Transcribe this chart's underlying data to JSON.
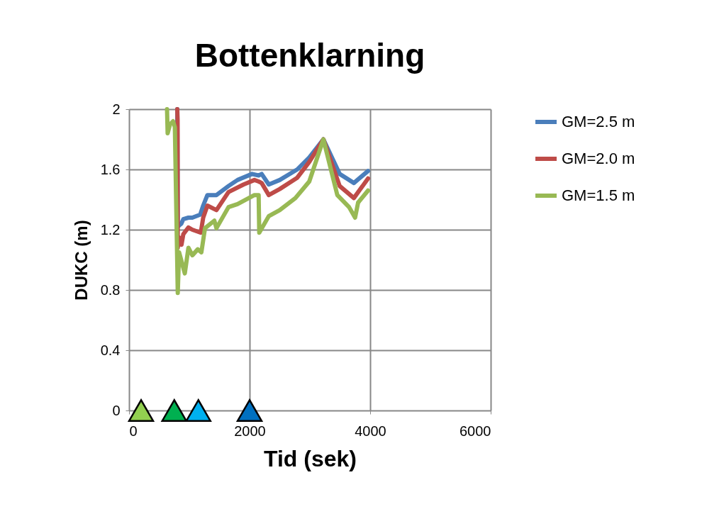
{
  "chart_data": {
    "type": "line",
    "title": "Bottenklarning",
    "xlabel": "Tid (sek)",
    "ylabel": "DUKC (m)",
    "xlim": [
      0,
      6000
    ],
    "xticks": [
      0,
      2000,
      4000,
      6000
    ],
    "ylim": [
      0,
      2
    ],
    "yticks": [
      0,
      0.4,
      0.8,
      1.2,
      1.6,
      2
    ],
    "grid": true,
    "legend": "right",
    "line_style": "solid",
    "series": [
      {
        "name": "GM=2.5 m",
        "color": "#4a7ebb",
        "x": [
          800,
          808,
          867,
          900,
          985,
          1050,
          1180,
          1230,
          1300,
          1450,
          1650,
          1800,
          2040,
          2150,
          2200,
          2318,
          2500,
          2790,
          2990,
          3224,
          3494,
          3730,
          3965
        ],
        "values": [
          2.0,
          1.22,
          1.24,
          1.27,
          1.28,
          1.28,
          1.3,
          1.36,
          1.43,
          1.43,
          1.49,
          1.53,
          1.57,
          1.56,
          1.57,
          1.5,
          1.53,
          1.6,
          1.68,
          1.8,
          1.57,
          1.51,
          1.59
        ]
      },
      {
        "name": "GM=2.0 m",
        "color": "#be4b48",
        "x": [
          800,
          805,
          808,
          830,
          870,
          900,
          985,
          1050,
          1190,
          1230,
          1300,
          1450,
          1650,
          1900,
          2080,
          2150,
          2200,
          2318,
          2500,
          2790,
          2990,
          3224,
          3494,
          3730,
          3965
        ],
        "values": [
          2.0,
          1.93,
          1.08,
          1.15,
          1.1,
          1.17,
          1.215,
          1.2,
          1.18,
          1.28,
          1.36,
          1.33,
          1.45,
          1.5,
          1.53,
          1.52,
          1.51,
          1.43,
          1.47,
          1.545,
          1.65,
          1.8,
          1.49,
          1.41,
          1.54
        ]
      },
      {
        "name": "GM=1.5 m",
        "color": "#98b954",
        "x": [
          630,
          640,
          680,
          730,
          760,
          808,
          830,
          925,
          985,
          1050,
          1140,
          1200,
          1260,
          1415,
          1450,
          1650,
          1800,
          2080,
          2150,
          2160,
          2318,
          2500,
          2760,
          2990,
          3224,
          3455,
          3650,
          3750,
          3800,
          3965
        ],
        "values": [
          2.0,
          1.84,
          1.9,
          1.92,
          1.88,
          0.78,
          1.05,
          0.91,
          1.08,
          1.03,
          1.07,
          1.05,
          1.21,
          1.26,
          1.21,
          1.35,
          1.37,
          1.43,
          1.43,
          1.18,
          1.29,
          1.33,
          1.41,
          1.52,
          1.8,
          1.43,
          1.35,
          1.28,
          1.38,
          1.46
        ]
      },
      {
        "type": "scatter",
        "marker": "triangle",
        "x": [
          200,
          750,
          1150,
          2000
        ],
        "values": [
          0,
          0,
          0,
          0
        ],
        "colors": [
          "#92d050",
          "#00b050",
          "#00b0f0",
          "#0070c0"
        ]
      }
    ]
  }
}
